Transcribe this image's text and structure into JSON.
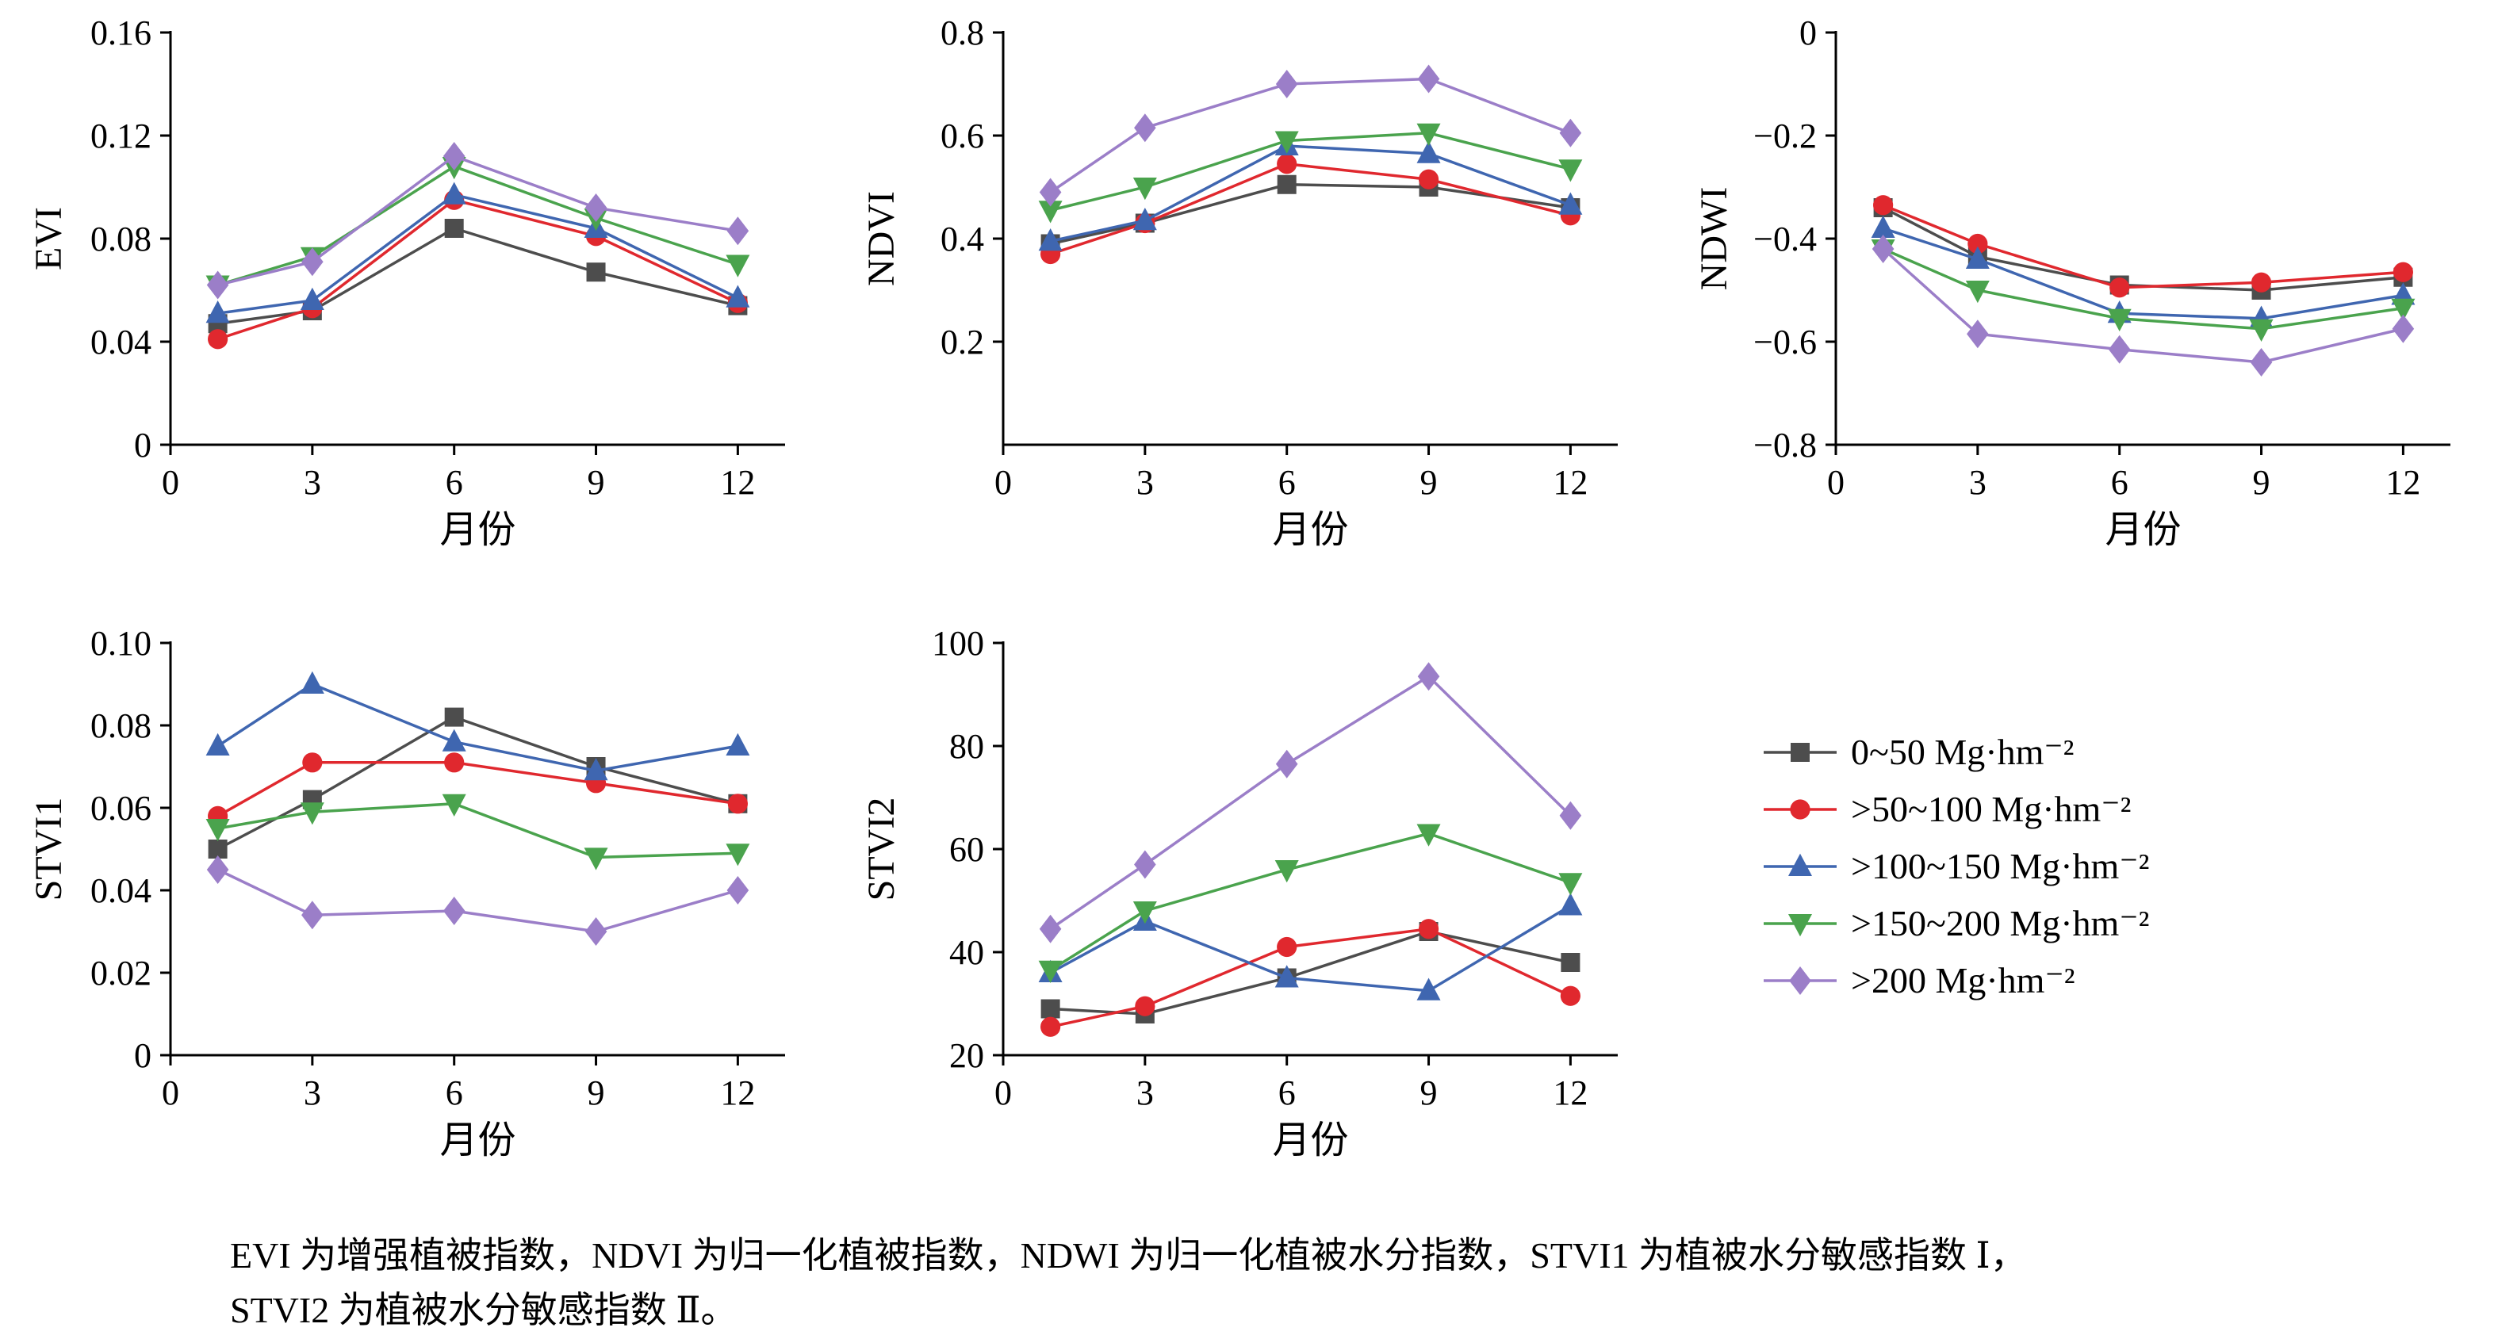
{
  "figure": {
    "caption_line1": "EVI 为增强植被指数，NDVI 为归一化植被指数，NDWI 为归一化植被水分指数，STVI1 为植被水分敏感指数 Ⅰ，",
    "caption_line2": "STVI2 为植被水分敏感指数 Ⅱ。"
  },
  "legend": {
    "position": "bottom-right",
    "items": [
      {
        "label": "0~50 Mg·hm⁻²",
        "color": "#4d4d4d",
        "marker": "square"
      },
      {
        "label": ">50~100 Mg·hm⁻²",
        "color": "#e0282e",
        "marker": "circle"
      },
      {
        "label": ">100~150 Mg·hm⁻²",
        "color": "#3f66b0",
        "marker": "triangle-up"
      },
      {
        "label": ">150~200 Mg·hm⁻²",
        "color": "#4aa34d",
        "marker": "triangle-down"
      },
      {
        "label": ">200 Mg·hm⁻²",
        "color": "#9b7ec8",
        "marker": "diamond"
      }
    ]
  },
  "chart_data": [
    {
      "type": "line",
      "ylabel": "EVI",
      "xlabel": "月份",
      "x": [
        1,
        3,
        6,
        9,
        12
      ],
      "xlim": [
        0,
        13
      ],
      "xticks": [
        0,
        3,
        6,
        9,
        12
      ],
      "xtick_labels": [
        "0",
        "3",
        "6",
        "9",
        "12"
      ],
      "ylim": [
        0,
        0.16
      ],
      "yticks": [
        0,
        0.04,
        0.08,
        0.12,
        0.16
      ],
      "ytick_labels": [
        "0",
        "0.04",
        "0.08",
        "0.12",
        "0.16"
      ],
      "grid": false,
      "series": [
        {
          "name": "0~50 Mg·hm⁻²",
          "values": [
            0.047,
            0.052,
            0.084,
            0.067,
            0.054
          ]
        },
        {
          "name": ">50~100 Mg·hm⁻²",
          "values": [
            0.041,
            0.053,
            0.095,
            0.081,
            0.055
          ]
        },
        {
          "name": ">100~150 Mg·hm⁻²",
          "values": [
            0.051,
            0.056,
            0.097,
            0.084,
            0.057
          ]
        },
        {
          "name": ">150~200 Mg·hm⁻²",
          "values": [
            0.062,
            0.073,
            0.108,
            0.088,
            0.07
          ]
        },
        {
          "name": ">200 Mg·hm⁻²",
          "values": [
            0.062,
            0.071,
            0.112,
            0.092,
            0.083
          ]
        }
      ]
    },
    {
      "type": "line",
      "ylabel": "NDVI",
      "xlabel": "月份",
      "x": [
        1,
        3,
        6,
        9,
        12
      ],
      "xlim": [
        0,
        13
      ],
      "xticks": [
        0,
        3,
        6,
        9,
        12
      ],
      "xtick_labels": [
        "0",
        "3",
        "6",
        "9",
        "12"
      ],
      "ylim": [
        0,
        0.8
      ],
      "yticks": [
        0.2,
        0.4,
        0.6,
        0.8
      ],
      "ytick_labels": [
        "0.2",
        "0.4",
        "0.6",
        "0.8"
      ],
      "grid": false,
      "series": [
        {
          "name": "0~50 Mg·hm⁻²",
          "values": [
            0.39,
            0.43,
            0.505,
            0.5,
            0.46
          ]
        },
        {
          "name": ">50~100 Mg·hm⁻²",
          "values": [
            0.37,
            0.43,
            0.545,
            0.515,
            0.445
          ]
        },
        {
          "name": ">100~150 Mg·hm⁻²",
          "values": [
            0.395,
            0.435,
            0.58,
            0.565,
            0.465
          ]
        },
        {
          "name": ">150~200 Mg·hm⁻²",
          "values": [
            0.455,
            0.5,
            0.59,
            0.605,
            0.535
          ]
        },
        {
          "name": ">200 Mg·hm⁻²",
          "values": [
            0.49,
            0.615,
            0.7,
            0.71,
            0.605
          ]
        }
      ]
    },
    {
      "type": "line",
      "ylabel": "NDWI",
      "xlabel": "月份",
      "x": [
        1,
        3,
        6,
        9,
        12
      ],
      "xlim": [
        0,
        13
      ],
      "xticks": [
        0,
        3,
        6,
        9,
        12
      ],
      "xtick_labels": [
        "0",
        "3",
        "6",
        "9",
        "12"
      ],
      "ylim": [
        -0.8,
        0
      ],
      "yticks": [
        -0.8,
        -0.6,
        -0.4,
        -0.2,
        0
      ],
      "ytick_labels": [
        "−0.8",
        "−0.6",
        "−0.4",
        "−0.2",
        "0"
      ],
      "grid": false,
      "series": [
        {
          "name": "0~50 Mg·hm⁻²",
          "values": [
            -0.34,
            -0.435,
            -0.49,
            -0.5,
            -0.475
          ]
        },
        {
          "name": ">50~100 Mg·hm⁻²",
          "values": [
            -0.335,
            -0.41,
            -0.495,
            -0.485,
            -0.465
          ]
        },
        {
          "name": ">100~150 Mg·hm⁻²",
          "values": [
            -0.38,
            -0.44,
            -0.545,
            -0.555,
            -0.51
          ]
        },
        {
          "name": ">150~200 Mg·hm⁻²",
          "values": [
            -0.42,
            -0.5,
            -0.555,
            -0.575,
            -0.535
          ]
        },
        {
          "name": ">200 Mg·hm⁻²",
          "values": [
            -0.42,
            -0.585,
            -0.615,
            -0.64,
            -0.575
          ]
        }
      ]
    },
    {
      "type": "line",
      "ylabel": "STVI1",
      "xlabel": "月份",
      "x": [
        1,
        3,
        6,
        9,
        12
      ],
      "xlim": [
        0,
        13
      ],
      "xticks": [
        0,
        3,
        6,
        9,
        12
      ],
      "xtick_labels": [
        "0",
        "3",
        "6",
        "9",
        "12"
      ],
      "ylim": [
        0,
        0.1
      ],
      "yticks": [
        0,
        0.02,
        0.04,
        0.06,
        0.08,
        0.1
      ],
      "ytick_labels": [
        "0",
        "0.02",
        "0.04",
        "0.06",
        "0.08",
        "0.10"
      ],
      "grid": false,
      "series": [
        {
          "name": "0~50 Mg·hm⁻²",
          "values": [
            0.05,
            0.062,
            0.082,
            0.07,
            0.061
          ]
        },
        {
          "name": ">50~100 Mg·hm⁻²",
          "values": [
            0.058,
            0.071,
            0.071,
            0.066,
            0.061
          ]
        },
        {
          "name": ">100~150 Mg·hm⁻²",
          "values": [
            0.075,
            0.09,
            0.076,
            0.069,
            0.075
          ]
        },
        {
          "name": ">150~200 Mg·hm⁻²",
          "values": [
            0.055,
            0.059,
            0.061,
            0.048,
            0.049
          ]
        },
        {
          "name": ">200 Mg·hm⁻²",
          "values": [
            0.045,
            0.034,
            0.035,
            0.03,
            0.04
          ]
        }
      ]
    },
    {
      "type": "line",
      "ylabel": "STVI2",
      "xlabel": "月份",
      "x": [
        1,
        3,
        6,
        9,
        12
      ],
      "xlim": [
        0,
        13
      ],
      "xticks": [
        0,
        3,
        6,
        9,
        12
      ],
      "xtick_labels": [
        "0",
        "3",
        "6",
        "9",
        "12"
      ],
      "ylim": [
        20,
        100
      ],
      "yticks": [
        20,
        40,
        60,
        80,
        100
      ],
      "ytick_labels": [
        "20",
        "40",
        "60",
        "80",
        "100"
      ],
      "grid": false,
      "series": [
        {
          "name": "0~50 Mg·hm⁻²",
          "values": [
            29.0,
            28.0,
            35.0,
            44.0,
            38.0
          ]
        },
        {
          "name": ">50~100 Mg·hm⁻²",
          "values": [
            25.5,
            29.5,
            41.0,
            44.5,
            31.5
          ]
        },
        {
          "name": ">100~150 Mg·hm⁻²",
          "values": [
            36.0,
            46.0,
            35.0,
            32.5,
            49.0
          ]
        },
        {
          "name": ">150~200 Mg·hm⁻²",
          "values": [
            36.5,
            48.0,
            56.0,
            63.0,
            53.5
          ]
        },
        {
          "name": ">200 Mg·hm⁻²",
          "values": [
            44.5,
            57.0,
            76.5,
            93.5,
            66.5
          ]
        }
      ]
    }
  ]
}
